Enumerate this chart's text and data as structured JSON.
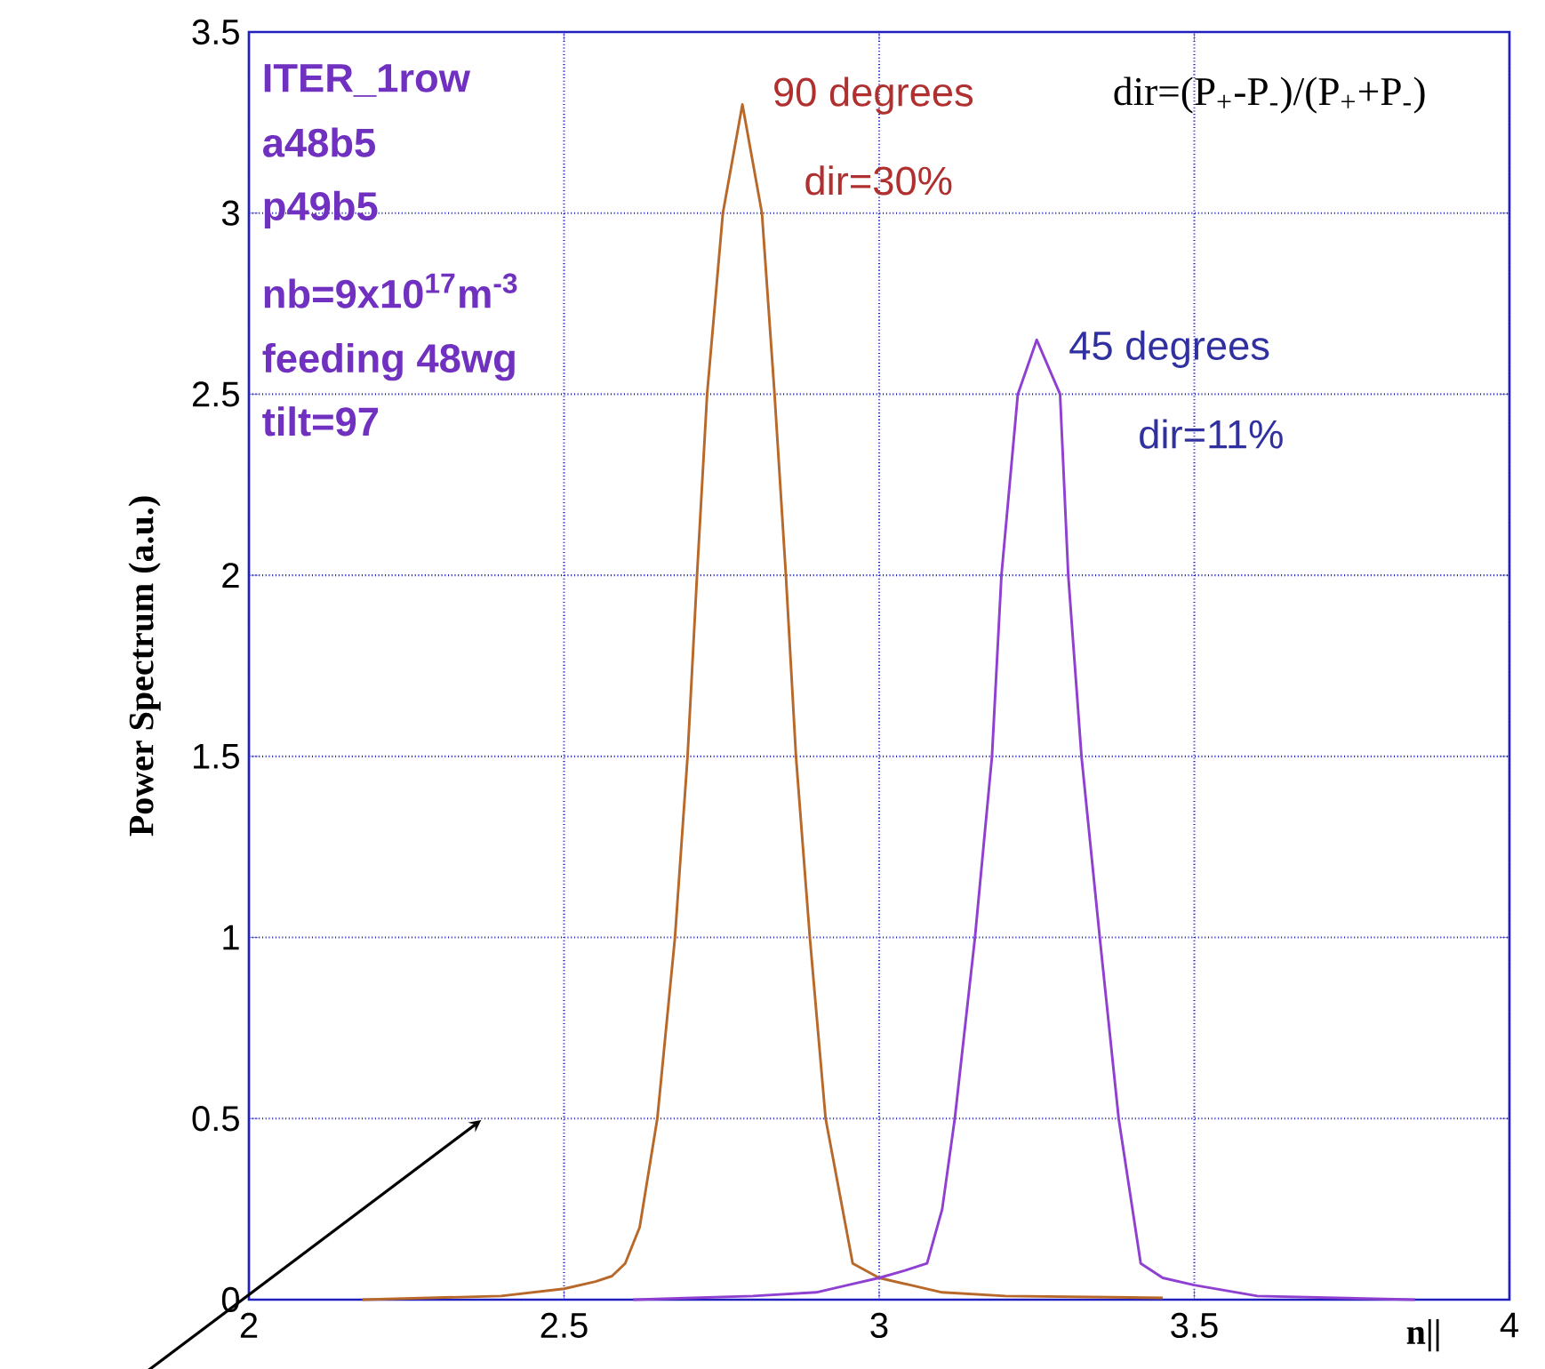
{
  "chart_data": {
    "type": "line",
    "xlabel": "n||",
    "ylabel": "Power Spectrum (a.u.)",
    "xlim": [
      2,
      4
    ],
    "ylim": [
      0,
      3.5
    ],
    "xticks": [
      2,
      2.5,
      3,
      3.5,
      4
    ],
    "yticks": [
      0,
      0.5,
      1,
      1.5,
      2,
      2.5,
      3,
      3.5
    ],
    "grid": true,
    "marker": "none",
    "line_style": "solid",
    "annotations": [
      "ITER_1row",
      "a48b5",
      "p49b5",
      "nb=9x10$^{17}$m$^{-3}$",
      "feeding 48wg",
      "tilt=97",
      "90 degrees",
      "dir=30%",
      "45 degrees",
      "dir=11%",
      "dir=(P$_{+}$-P$_{-}$)/(P$_{+}$+P$_{-}$)"
    ],
    "series": [
      {
        "color": "#b8692a",
        "x": [
          2.18,
          2.4,
          2.5,
          2.55,
          2.576,
          2.597,
          2.62,
          2.648,
          2.676,
          2.696,
          2.711,
          2.727,
          2.752,
          2.783,
          2.814,
          2.834,
          2.852,
          2.868,
          2.89,
          2.915,
          2.958,
          3.0,
          3.05,
          3.1,
          3.2,
          3.45
        ],
        "values": [
          0.0,
          0.01,
          0.03,
          0.05,
          0.065,
          0.1,
          0.2,
          0.5,
          1.0,
          1.5,
          2.0,
          2.5,
          3.0,
          3.3,
          3.0,
          2.5,
          2.0,
          1.5,
          1.0,
          0.5,
          0.1,
          0.06,
          0.04,
          0.02,
          0.01,
          0.005
        ]
      },
      {
        "color": "#9040d0",
        "x": [
          2.61,
          2.8,
          2.9,
          2.95,
          3.0,
          3.04,
          3.076,
          3.1,
          3.12,
          3.152,
          3.179,
          3.194,
          3.22,
          3.25,
          3.287,
          3.3,
          3.321,
          3.35,
          3.38,
          3.415,
          3.45,
          3.5,
          3.6,
          3.85
        ],
        "values": [
          0.0,
          0.01,
          0.02,
          0.04,
          0.06,
          0.08,
          0.1,
          0.25,
          0.5,
          1.0,
          1.5,
          2.0,
          2.5,
          2.65,
          2.5,
          2.0,
          1.5,
          1.0,
          0.5,
          0.1,
          0.06,
          0.04,
          0.01,
          0.0
        ]
      }
    ]
  }
}
